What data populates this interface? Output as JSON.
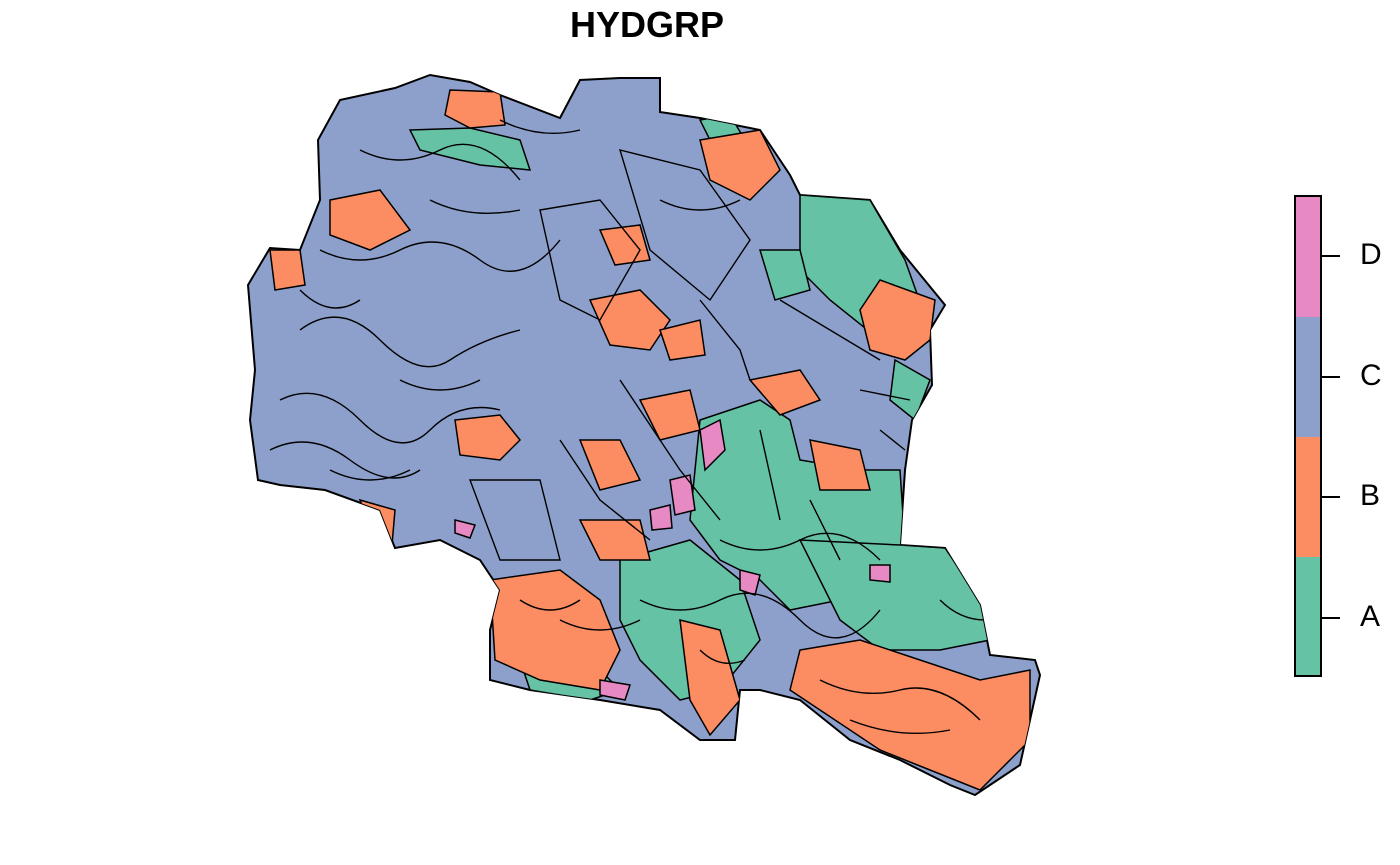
{
  "title": "HYDGRP",
  "legend": {
    "items": [
      {
        "label": "D",
        "color": "#E78AC3"
      },
      {
        "label": "C",
        "color": "#8DA0CB"
      },
      {
        "label": "B",
        "color": "#FC8D62"
      },
      {
        "label": "A",
        "color": "#66C2A5"
      }
    ]
  },
  "map": {
    "outline_color": "#000000",
    "groups": [
      "A",
      "B",
      "C",
      "D"
    ]
  }
}
